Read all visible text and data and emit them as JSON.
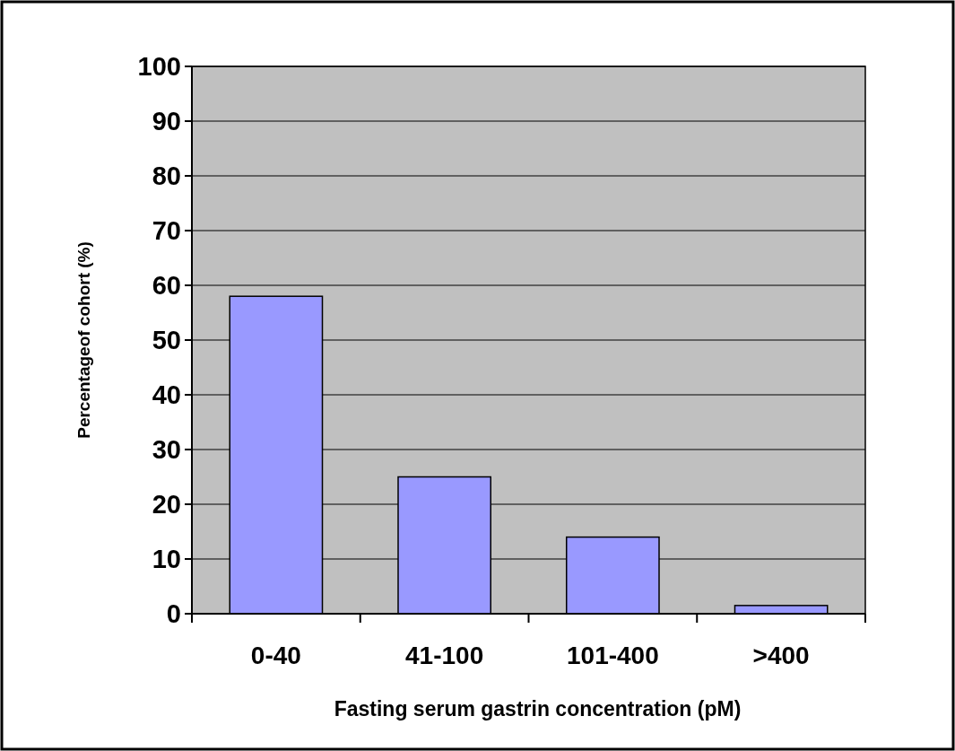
{
  "chart_data": {
    "type": "bar",
    "xlabel": "Fasting serum gastrin concentration (pM)",
    "ylabel": "Percentageof cohort (%)",
    "categories": [
      "0-40",
      "41-100",
      "101-400",
      ">400"
    ],
    "values": [
      58,
      25,
      14,
      1.5
    ],
    "color": "#9999ff",
    "ylim": [
      0,
      100
    ],
    "yticks": [
      0,
      10,
      20,
      30,
      40,
      50,
      60,
      70,
      80,
      90,
      100
    ],
    "grid": "y"
  }
}
